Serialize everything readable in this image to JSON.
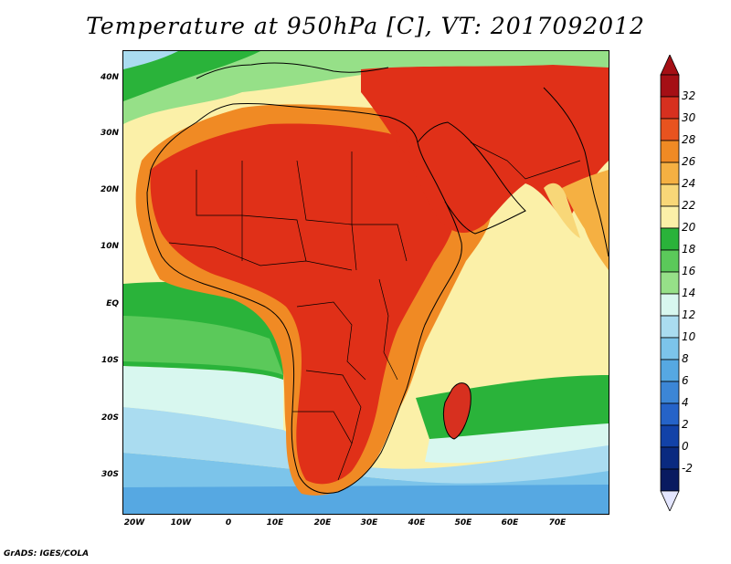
{
  "title": "Temperature at 950hPa [C], VT: 2017092012",
  "credit": "GrADS: IGES/COLA",
  "map": {
    "projection": "lat-lon",
    "lon_range": [
      -23,
      80
    ],
    "lat_range": [
      -37,
      46
    ],
    "lat_ticks": [
      "40N",
      "30N",
      "20N",
      "10N",
      "EQ",
      "10S",
      "20S",
      "30S"
    ],
    "lon_ticks": [
      "20W",
      "10W",
      "0",
      "10E",
      "20E",
      "30E",
      "40E",
      "50E",
      "60E",
      "70E"
    ],
    "lat_tick_values": [
      40,
      30,
      20,
      10,
      0,
      -10,
      -20,
      -30
    ],
    "lon_tick_values": [
      -20,
      -10,
      0,
      10,
      20,
      30,
      40,
      50,
      60,
      70
    ]
  },
  "colorbar": {
    "labels": [
      "32",
      "30",
      "28",
      "26",
      "24",
      "22",
      "20",
      "18",
      "16",
      "14",
      "12",
      "10",
      "8",
      "6",
      "4",
      "2",
      "0",
      "-2"
    ],
    "colors": [
      "#a50f15",
      "#d7301f",
      "#e8531f",
      "#f08a24",
      "#f5b042",
      "#f8d778",
      "#fbf0a8",
      "#2ab33a",
      "#5bc95a",
      "#96e088",
      "#d8f7ef",
      "#aadcf0",
      "#7cc4ea",
      "#56a8e2",
      "#3c86d6",
      "#2563c8",
      "#1242a8",
      "#0a2a80",
      "#081a60"
    ],
    "over_color": "#a50f15",
    "under_color": "#e4e6ff"
  },
  "field_colors": {
    "hot": "#d7301f",
    "very_hot": "#e03018",
    "warm": "#f08a24",
    "mild": "#f8d778",
    "pale": "#fbf0a8",
    "green": "#2ab33a",
    "lightgreen": "#96e088",
    "cool": "#d8f7ef",
    "lightblue": "#aadcf0",
    "blue": "#7cc4ea",
    "deepblue": "#56a8e2"
  }
}
